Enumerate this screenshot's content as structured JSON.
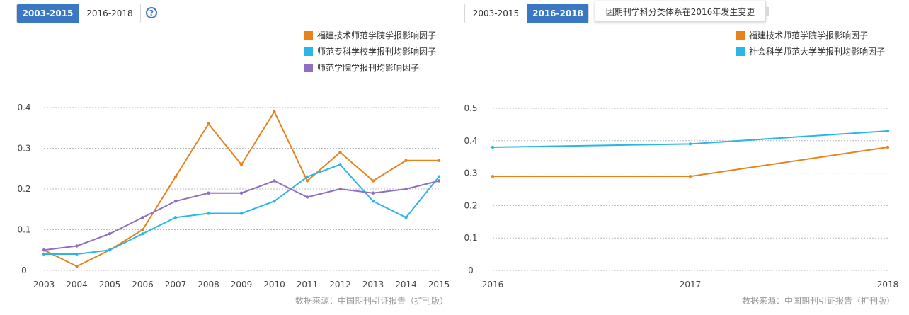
{
  "left_panel": {
    "tabs": [
      {
        "label": "2003-2015",
        "active": true
      },
      {
        "label": "2016-2018",
        "active": false
      }
    ],
    "help_icon": "?"
  },
  "right_panel": {
    "tabs": [
      {
        "label": "2003-2015",
        "active": false
      },
      {
        "label": "2016-2018",
        "active": true
      }
    ],
    "tooltip": "因期刊学科分类体系在2016年发生变更"
  },
  "colors": {
    "orange": "#e8831b",
    "cyan": "#2cb6e8",
    "purple": "#8f6fc1",
    "tab_active": "#3a78c4"
  },
  "chart_data": [
    {
      "type": "line",
      "x": [
        "2003",
        "2004",
        "2005",
        "2006",
        "2007",
        "2008",
        "2009",
        "2010",
        "2011",
        "2012",
        "2013",
        "2014",
        "2015"
      ],
      "ylim": [
        0,
        0.4
      ],
      "yticks": [
        "0",
        "0.1",
        "0.2",
        "0.3",
        "0.4"
      ],
      "grid": true,
      "legend_position": "top-right",
      "source_note": "数据来源：中国期刊引证报告（扩刊版）",
      "series": [
        {
          "name": "福建技术师范学院学报影响因子",
          "color": "#e8831b",
          "values": [
            0.05,
            0.01,
            0.05,
            0.1,
            0.23,
            0.36,
            0.26,
            0.39,
            0.22,
            0.29,
            0.22,
            0.27,
            0.27
          ]
        },
        {
          "name": "师范专科学校学报刊均影响因子",
          "color": "#2cb6e8",
          "values": [
            0.04,
            0.04,
            0.05,
            0.09,
            0.13,
            0.14,
            0.14,
            0.17,
            0.23,
            0.26,
            0.17,
            0.13,
            0.23
          ]
        },
        {
          "name": "师范学院学报刊均影响因子",
          "color": "#8f6fc1",
          "values": [
            0.05,
            0.06,
            0.09,
            0.13,
            0.17,
            0.19,
            0.19,
            0.22,
            0.18,
            0.2,
            0.19,
            0.2,
            0.22
          ]
        }
      ]
    },
    {
      "type": "line",
      "x": [
        "2016",
        "2017",
        "2018"
      ],
      "ylim": [
        0,
        0.5
      ],
      "yticks": [
        "0",
        "0.1",
        "0.2",
        "0.3",
        "0.4",
        "0.5"
      ],
      "grid": true,
      "legend_position": "top-right",
      "source_note": "数据来源：中国期刊引证报告（扩刊版）",
      "series": [
        {
          "name": "福建技术师范学院学报影响因子",
          "color": "#e8831b",
          "values": [
            0.29,
            0.29,
            0.38
          ]
        },
        {
          "name": "社会科学师范大学学报刊均影响因子",
          "color": "#2cb6e8",
          "values": [
            0.38,
            0.39,
            0.43
          ]
        }
      ]
    }
  ]
}
